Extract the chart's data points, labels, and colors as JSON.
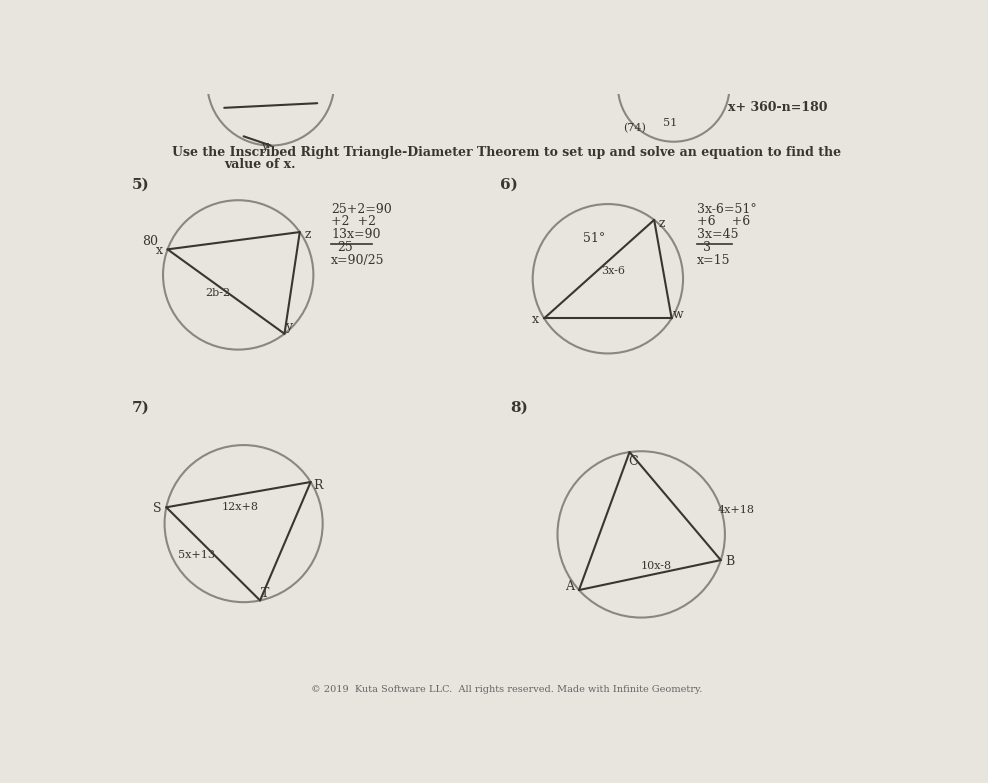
{
  "bg_color": "#e8e4de",
  "text_color": "#3a3530",
  "title_line1": "Use the Inscribed Right Triangle-Diameter Theorem to set up and solve an equation to find the",
  "title_line2": "value of x.",
  "p5": "5)",
  "p6": "6)",
  "p7": "7)",
  "p8": "8)",
  "top_right_eq": "x+ 360-n=180",
  "p5_side1": "2b-2",
  "p5_lx": "x",
  "p5_ly": "y",
  "p5_lz": "z",
  "p5_corner": "80",
  "p5_w1": "25+2=90",
  "p5_w2": "+2  +2",
  "p5_w3": "13x=90",
  "p5_w4": "25",
  "p5_w5": "x=90/25",
  "p6_angle": "51°",
  "p6_side": "3x-6",
  "p6_lx": "x",
  "p6_lw": "w",
  "p6_lz": "z",
  "p6_w1": "3x-6=51°",
  "p6_w2": "+6    +6",
  "p6_w3": "3x=45",
  "p6_w4": "3",
  "p6_w5": "x=15",
  "p7_lT": "T",
  "p7_lS": "S",
  "p7_lR": "R",
  "p7_s1": "5x+13",
  "p7_s2": "12x+8",
  "p8_lA": "A",
  "p8_lB": "B",
  "p8_lC": "C",
  "p8_top": "10x-8",
  "p8_right": "4x+18",
  "copyright": "© 2019  Kuta Software LLC.  All rights reserved. Made with Infinite Geometry."
}
